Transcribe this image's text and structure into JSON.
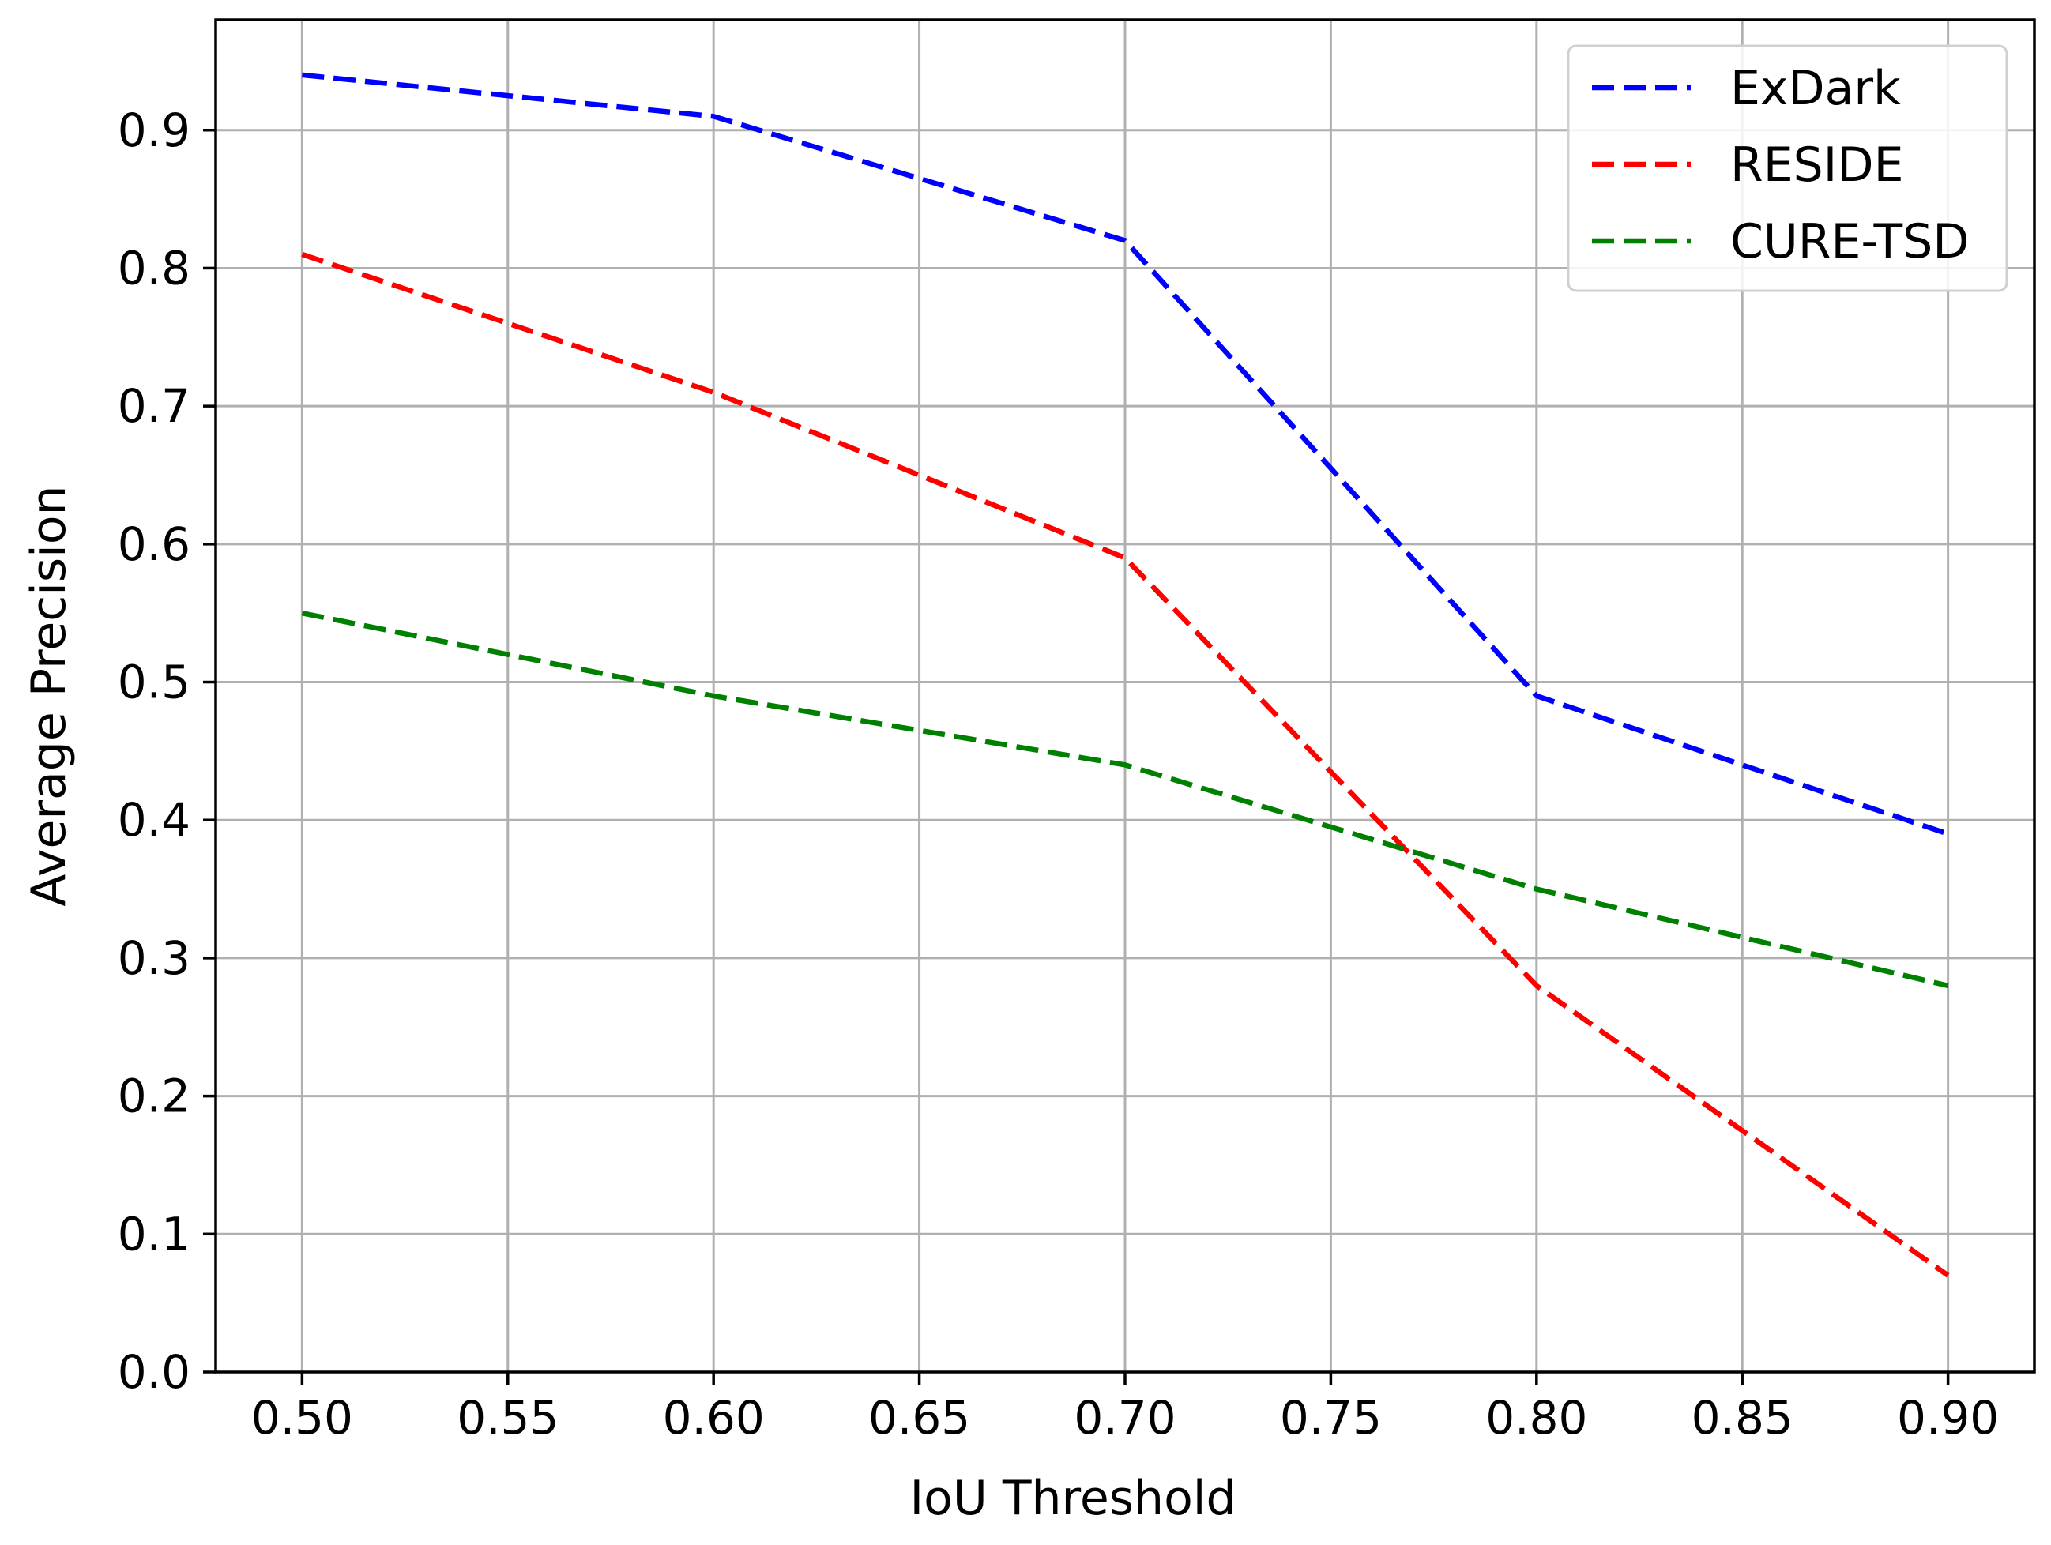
{
  "chart_data": {
    "type": "line",
    "title": "",
    "xlabel": "IoU Threshold",
    "ylabel": "Average Precision",
    "x": [
      0.5,
      0.6,
      0.7,
      0.8,
      0.9
    ],
    "xlim": [
      0.479,
      0.921
    ],
    "ylim": [
      0.0,
      0.98
    ],
    "x_ticks": [
      "0.50",
      "0.55",
      "0.60",
      "0.65",
      "0.70",
      "0.75",
      "0.80",
      "0.85",
      "0.90"
    ],
    "y_ticks": [
      "0.0",
      "0.1",
      "0.2",
      "0.3",
      "0.4",
      "0.5",
      "0.6",
      "0.7",
      "0.8",
      "0.9"
    ],
    "grid": true,
    "legend_position": "top-right",
    "series": [
      {
        "name": "ExDark",
        "color": "#0000ff",
        "line_style": "dashed",
        "values": [
          0.94,
          0.91,
          0.82,
          0.49,
          0.39
        ]
      },
      {
        "name": "RESIDE",
        "color": "#ff0000",
        "line_style": "dashed",
        "values": [
          0.81,
          0.71,
          0.59,
          0.28,
          0.07
        ]
      },
      {
        "name": "CURE-TSD",
        "color": "#008000",
        "line_style": "dashed",
        "values": [
          0.55,
          0.49,
          0.44,
          0.35,
          0.28
        ]
      }
    ]
  }
}
